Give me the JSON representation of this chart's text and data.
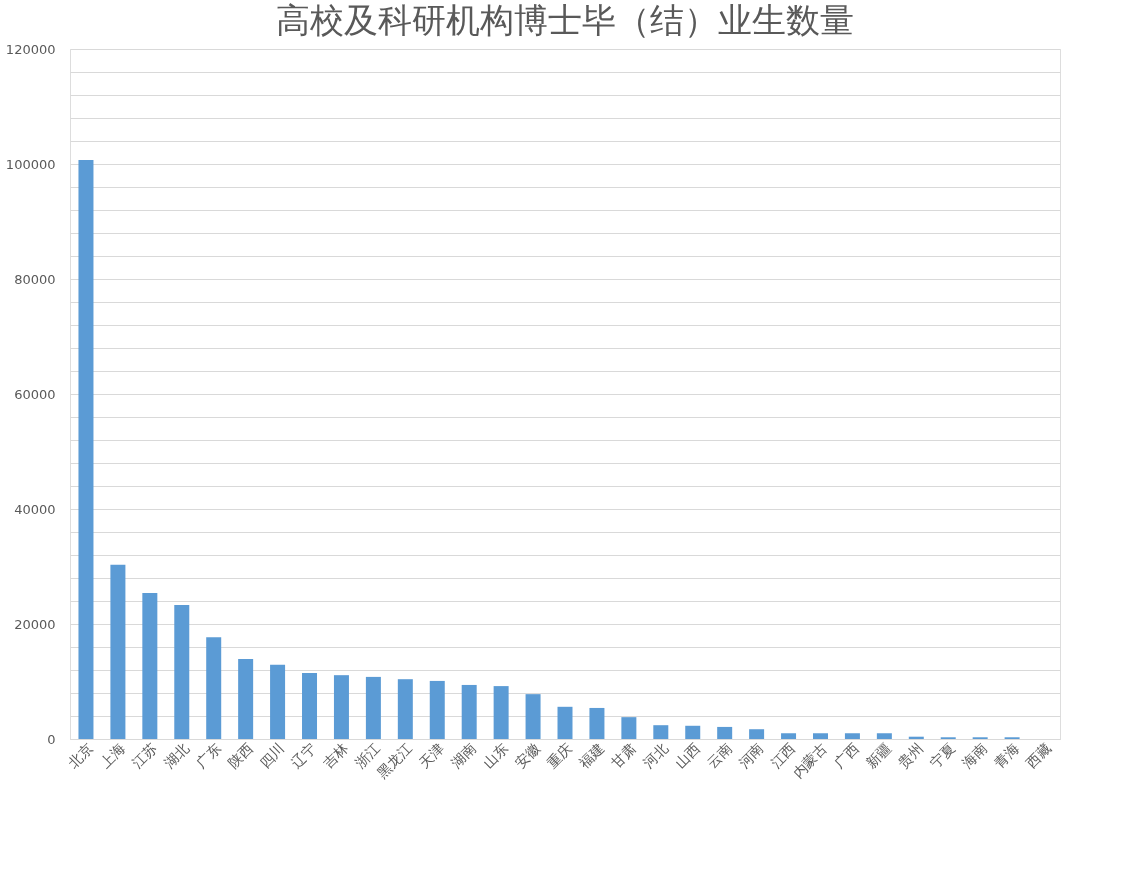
{
  "chart_data": {
    "type": "bar",
    "title": "高校及科研机构博士毕（结）业生数量",
    "categories": [
      "北京",
      "上海",
      "江苏",
      "湖北",
      "广东",
      "陕西",
      "四川",
      "辽宁",
      "吉林",
      "浙江",
      "黑龙江",
      "天津",
      "湖南",
      "山东",
      "安徽",
      "重庆",
      "福建",
      "甘肃",
      "河北",
      "山西",
      "云南",
      "河南",
      "江西",
      "内蒙古",
      "广西",
      "新疆",
      "贵州",
      "宁夏",
      "海南",
      "青海",
      "西藏"
    ],
    "values": [
      100700,
      30300,
      25400,
      23300,
      17700,
      13900,
      12900,
      11500,
      11100,
      10800,
      10400,
      10100,
      9400,
      9200,
      7800,
      5600,
      5400,
      3800,
      2400,
      2300,
      2100,
      1700,
      1000,
      1000,
      1000,
      1000,
      400,
      300,
      300,
      300,
      null
    ],
    "color": "#5b9bd5",
    "ylim": [
      0,
      120000
    ],
    "yticks": [
      0,
      {
        "value": 4000,
        "label": null
      },
      {
        "value": 8000,
        "label": null
      },
      {
        "value": 12000,
        "label": null
      },
      {
        "value": 16000,
        "label": null
      },
      20000,
      {
        "value": 24000,
        "label": null
      },
      {
        "value": 28000,
        "label": null
      },
      {
        "value": 32000,
        "label": null
      },
      {
        "value": 36000,
        "label": null
      },
      40000,
      {
        "value": 44000,
        "label": null
      },
      {
        "value": 48000,
        "label": null
      },
      {
        "value": 52000,
        "label": null
      },
      {
        "value": 56000,
        "label": null
      },
      60000,
      {
        "value": 64000,
        "label": null
      },
      {
        "value": 68000,
        "label": null
      },
      {
        "value": 72000,
        "label": null
      },
      {
        "value": 76000,
        "label": null
      },
      80000,
      {
        "value": 84000,
        "label": null
      },
      {
        "value": 88000,
        "label": null
      },
      {
        "value": 92000,
        "label": null
      },
      {
        "value": 96000,
        "label": null
      },
      100000,
      {
        "value": 104000,
        "label": null
      },
      {
        "value": 108000,
        "label": null
      },
      {
        "value": 112000,
        "label": null
      },
      {
        "value": 116000,
        "label": null
      },
      120000
    ],
    "grid": "y"
  }
}
